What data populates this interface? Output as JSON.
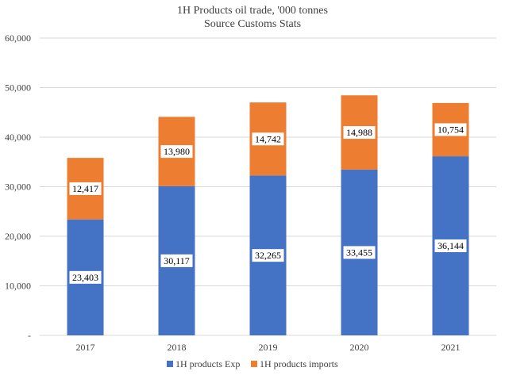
{
  "chart_data": {
    "type": "bar",
    "stacked": true,
    "title": "1H Products oil trade, '000 tonnes",
    "subtitle": "Source Customs Stats",
    "categories": [
      "2017",
      "2018",
      "2019",
      "2020",
      "2021"
    ],
    "series": [
      {
        "name": "1H products Exp",
        "values": [
          23403,
          30117,
          32265,
          33455,
          36144
        ],
        "labels": [
          "23,403",
          "30,117",
          "32,265",
          "33,455",
          "36,144"
        ],
        "color": "#4472C4"
      },
      {
        "name": "1H products imports",
        "values": [
          12417,
          13980,
          14742,
          14988,
          10754
        ],
        "labels": [
          "12,417",
          "13,980",
          "14,742",
          "14,988",
          "10,754"
        ],
        "color": "#ED7D31"
      }
    ],
    "ylim": [
      0,
      60000
    ],
    "yticks": [
      "-",
      "10,000",
      "20,000",
      "30,000",
      "40,000",
      "50,000",
      "60,000"
    ],
    "grid": true,
    "legend": "bottom"
  }
}
